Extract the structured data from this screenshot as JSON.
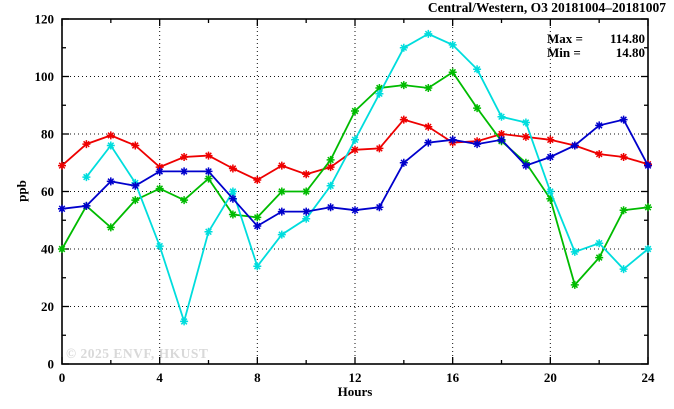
{
  "chart_data": {
    "type": "line",
    "title": "Central/Western, O3 20181004–20181007",
    "xlabel": "Hours",
    "ylabel": "ppb",
    "stats": {
      "max_label": "Max =",
      "max_value": "114.80",
      "min_label": "Min =",
      "min_value": "14.80"
    },
    "watermark": "© 2025 ENVF, HKUST",
    "xlim": [
      0,
      24
    ],
    "ylim": [
      0,
      120
    ],
    "x_major_ticks": [
      0,
      4,
      8,
      12,
      16,
      20,
      24
    ],
    "x_minor_ticks": [
      2,
      6,
      10,
      14,
      18,
      22
    ],
    "y_major_ticks": [
      0,
      20,
      40,
      60,
      80,
      100,
      120
    ],
    "y_minor_ticks": [
      10,
      30,
      50,
      70,
      90,
      110
    ],
    "grid": "dotted",
    "legend": "none",
    "marker": "asterisk",
    "x": [
      0,
      1,
      2,
      3,
      4,
      5,
      6,
      7,
      8,
      9,
      10,
      11,
      12,
      13,
      14,
      15,
      16,
      17,
      18,
      19,
      20,
      21,
      22,
      23,
      24
    ],
    "series": [
      {
        "name": "red",
        "color": "#ee0000",
        "values": [
          69,
          76.5,
          79.5,
          76,
          68.5,
          72,
          72.5,
          68,
          64,
          69,
          66,
          68.5,
          74.5,
          75,
          85,
          82.5,
          77,
          77.5,
          80,
          79,
          78,
          76,
          73,
          72,
          69.5
        ]
      },
      {
        "name": "green",
        "color": "#00bb00",
        "values": [
          40,
          55,
          47.5,
          57,
          61,
          57,
          64.5,
          52,
          51,
          60,
          60,
          71,
          88,
          96,
          97,
          96,
          101.5,
          89,
          77.5,
          70,
          57.5,
          27.5,
          37,
          53.5,
          54.5
        ]
      },
      {
        "name": "cyan",
        "color": "#00dddd",
        "values": [
          null,
          65,
          76,
          63,
          41,
          14.8,
          46,
          60,
          34,
          45,
          50.5,
          62,
          78,
          94,
          110,
          114.8,
          111,
          102.5,
          86,
          84,
          60,
          39,
          42,
          33,
          40
        ]
      },
      {
        "name": "blue",
        "color": "#0000cc",
        "values": [
          54,
          55,
          63.5,
          62,
          67,
          67,
          67,
          57.5,
          48,
          53,
          53,
          54.5,
          53.5,
          54.5,
          70,
          77,
          78,
          76.5,
          78,
          69,
          72,
          76,
          83,
          85,
          69
        ]
      }
    ]
  }
}
